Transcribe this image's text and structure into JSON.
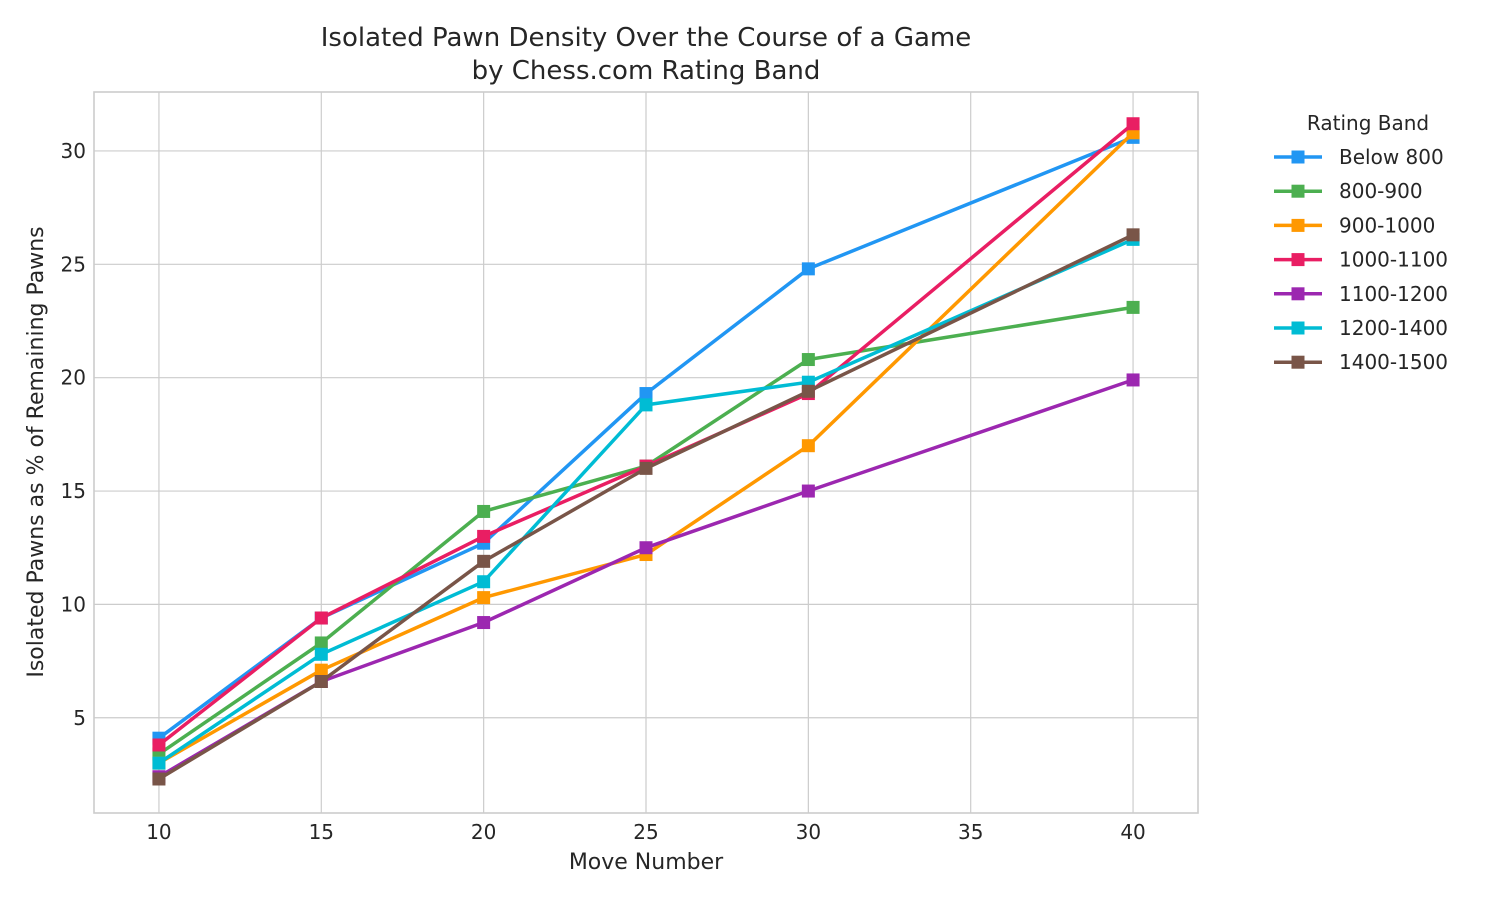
{
  "chart_data": {
    "type": "line",
    "title": "Isolated Pawn Density Over the Course of a Game",
    "subtitle": "by Chess.com Rating Band",
    "xlabel": "Move Number",
    "ylabel": "Isolated Pawns as % of Remaining Pawns",
    "x": [
      10,
      15,
      20,
      25,
      30,
      40
    ],
    "xlim": [
      8,
      42
    ],
    "ylim": [
      0.8,
      32.6
    ],
    "xticks": [
      10,
      15,
      20,
      25,
      30,
      35,
      40
    ],
    "yticks": [
      5,
      10,
      15,
      20,
      25,
      30
    ],
    "grid": true,
    "legend_title": "Rating Band",
    "legend_position": "outside-right",
    "marker": "square",
    "series": [
      {
        "name": "Below 800",
        "color": "#2196F3",
        "values": [
          4.1,
          9.4,
          12.7,
          19.3,
          24.8,
          30.6
        ]
      },
      {
        "name": "800-900",
        "color": "#4CAF50",
        "values": [
          3.4,
          8.3,
          14.1,
          16.1,
          20.8,
          23.1
        ]
      },
      {
        "name": "900-1000",
        "color": "#FF9800",
        "values": [
          3.0,
          7.1,
          10.3,
          12.2,
          17.0,
          30.8
        ]
      },
      {
        "name": "1000-1100",
        "color": "#E91E63",
        "values": [
          3.8,
          9.4,
          13.0,
          16.1,
          19.3,
          31.2
        ]
      },
      {
        "name": "1100-1200",
        "color": "#9C27B0",
        "values": [
          2.4,
          6.6,
          9.2,
          12.5,
          15.0,
          19.9
        ]
      },
      {
        "name": "1200-1400",
        "color": "#00BCD4",
        "values": [
          3.0,
          7.8,
          11.0,
          18.8,
          19.8,
          26.1
        ]
      },
      {
        "name": "1400-1500",
        "color": "#795548",
        "values": [
          2.3,
          6.6,
          11.9,
          16.0,
          19.4,
          26.3
        ]
      }
    ]
  }
}
